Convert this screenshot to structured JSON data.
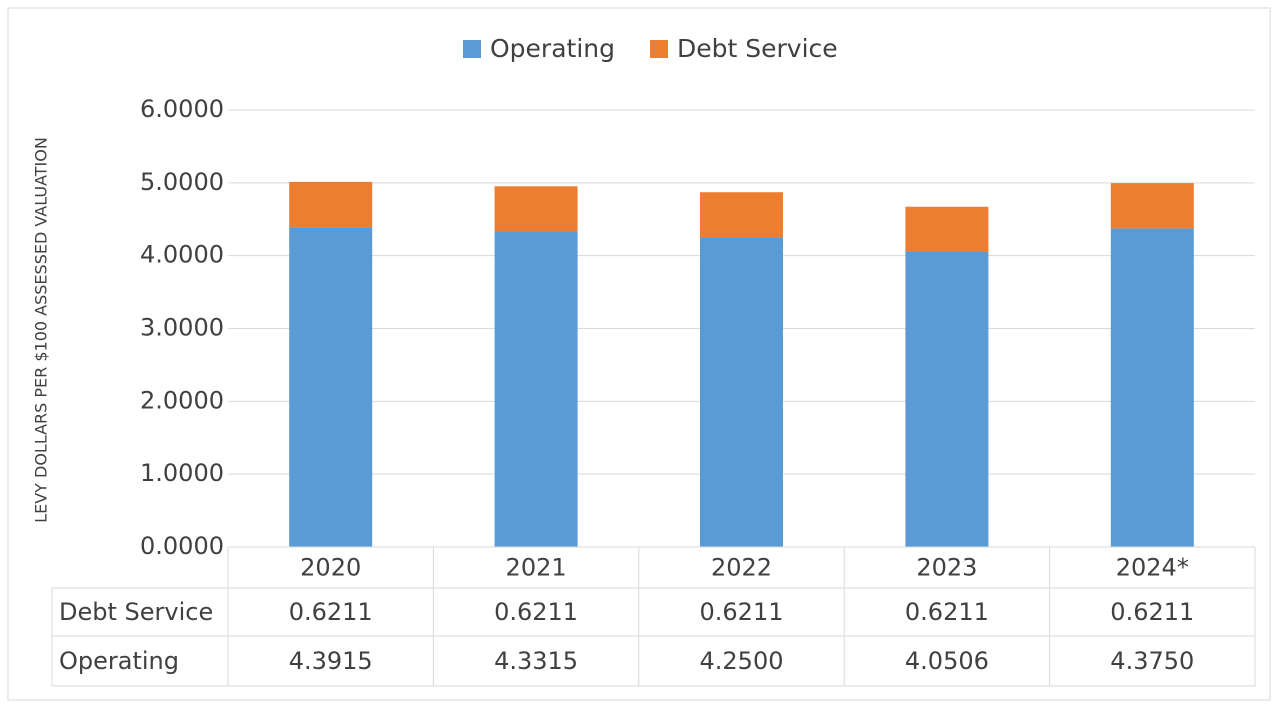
{
  "chart_data": {
    "type": "bar",
    "stacked": true,
    "y_axis_label": "LEVY DOLLARS PER $100 ASSESSED VALUATION",
    "categories": [
      "2020",
      "2021",
      "2022",
      "2023",
      "2024*"
    ],
    "series": [
      {
        "name": "Operating",
        "color": "#5b9bd5",
        "values": [
          4.3915,
          4.3315,
          4.25,
          4.0506,
          4.375
        ],
        "value_labels": [
          "4.3915",
          "4.3315",
          "4.2500",
          "4.0506",
          "4.3750"
        ]
      },
      {
        "name": "Debt Service",
        "color": "#ed7d31",
        "values": [
          0.6211,
          0.6211,
          0.6211,
          0.6211,
          0.6211
        ],
        "value_labels": [
          "0.6211",
          "0.6211",
          "0.6211",
          "0.6211",
          "0.6211"
        ]
      }
    ],
    "ylim": [
      0,
      6
    ],
    "yticks": [
      {
        "value": 0,
        "label": "0.0000"
      },
      {
        "value": 1,
        "label": "1.0000"
      },
      {
        "value": 2,
        "label": "2.0000"
      },
      {
        "value": 3,
        "label": "3.0000"
      },
      {
        "value": 4,
        "label": "4.0000"
      },
      {
        "value": 5,
        "label": "5.0000"
      },
      {
        "value": 6,
        "label": "6.0000"
      }
    ],
    "grid": true,
    "legend": "top"
  }
}
